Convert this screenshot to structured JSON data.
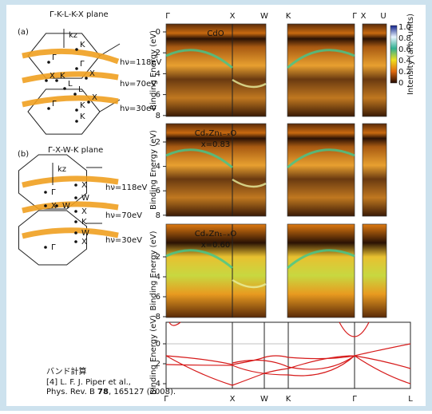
{
  "panel_a": {
    "label": "(a)",
    "title": "Γ-K-L-K-X plane",
    "axis": "kz",
    "points": [
      "K",
      "Γ",
      "X",
      "K",
      "L",
      "Γ",
      "X",
      "L",
      "Γ",
      "K",
      "X",
      "K"
    ],
    "photon": [
      "hν=118eV",
      "hν=70eV",
      "hν=30eV"
    ]
  },
  "panel_b": {
    "label": "(b)",
    "title": "Γ-X-W-K plane",
    "axis": "kz",
    "points": [
      "Γ",
      "X",
      "W",
      "X",
      "W",
      "X",
      "K",
      "W",
      "X",
      "Γ"
    ],
    "photon": [
      "hν=118eV",
      "hν=70eV",
      "hν=30eV"
    ]
  },
  "reference": {
    "heading": "バンド計算",
    "authors": "[4] L. F. J. Piper et al.,",
    "journal": "Phys. Rev. B ",
    "volume": "78",
    "pages": ", 165127 (2008)."
  },
  "arpes": {
    "top_labels": [
      "Γ",
      "X",
      "W",
      "K",
      "Γ",
      "X",
      "U"
    ],
    "y_label": "Binding Energy (eV)",
    "colorbar": {
      "ticks": [
        "1.0",
        "0.8",
        "0.6",
        "0.4",
        "0.2",
        "0"
      ],
      "label": "Intensity (arb. units)"
    },
    "panels": [
      {
        "name": "CdO",
        "yticks": [
          0,
          2,
          4,
          6,
          8
        ]
      },
      {
        "name": "CdₓZn₁₋ₓO",
        "composition": "x=0.83",
        "yticks": [
          2,
          4,
          6,
          8
        ]
      },
      {
        "name": "CdₓZn₁₋ₓO",
        "composition": "x=0.60",
        "yticks": [
          2,
          4,
          6,
          8
        ]
      }
    ]
  },
  "calculation": {
    "y_label": "Binding Energy (eV)",
    "yticks": [
      0,
      2,
      4
    ],
    "x_labels": [
      "Γ",
      "X",
      "W",
      "K",
      "Γ",
      "L"
    ]
  }
}
